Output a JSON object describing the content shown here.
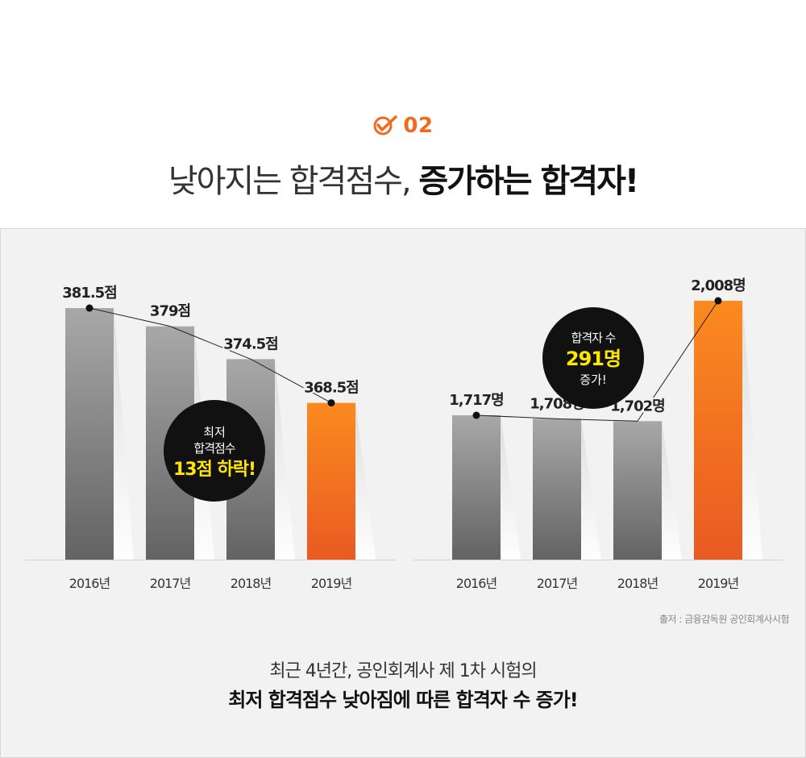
{
  "section": {
    "number": "02",
    "accent": "#f06a1c"
  },
  "headline": {
    "light": "낮아지는 합격점수, ",
    "bold": "증가하는 합격자!"
  },
  "colors": {
    "gray_bar_top": "#a8a8a8",
    "gray_bar_bottom": "#636363",
    "orange_bar_top": "#fb8a1f",
    "orange_bar_bottom": "#e95a22",
    "callout_bg": "#111111",
    "callout_highlight": "#ffe600"
  },
  "chart_data": [
    {
      "type": "bar",
      "categories": [
        "2016년",
        "2017년",
        "2018년",
        "2019년"
      ],
      "values": [
        381.5,
        379,
        374.5,
        368.5
      ],
      "value_labels": [
        "381.5점",
        "379점",
        "374.5점",
        "368.5점"
      ],
      "highlight_index": 3,
      "trend_line": true,
      "callout": {
        "lines": [
          "최저",
          "합격점수"
        ],
        "highlight": "13점 하락!"
      }
    },
    {
      "type": "bar",
      "categories": [
        "2016년",
        "2017년",
        "2018년",
        "2019년"
      ],
      "values": [
        1717,
        1708,
        1702,
        2008
      ],
      "value_labels": [
        "1,717명",
        "1,708명",
        "1,702명",
        "2,008명"
      ],
      "highlight_index": 3,
      "trend_line": true,
      "callout": {
        "lines": [
          "합격자 수"
        ],
        "highlight": "291명",
        "tail": "증가!"
      }
    }
  ],
  "source": "출저 : 금융감독원 공인회계사시험",
  "summary": {
    "line1": "최근 4년간, 공인회계사 제 1차 시험의",
    "line2": "최저 합격점수 낮아짐에 따른 합격자 수 증가!"
  }
}
